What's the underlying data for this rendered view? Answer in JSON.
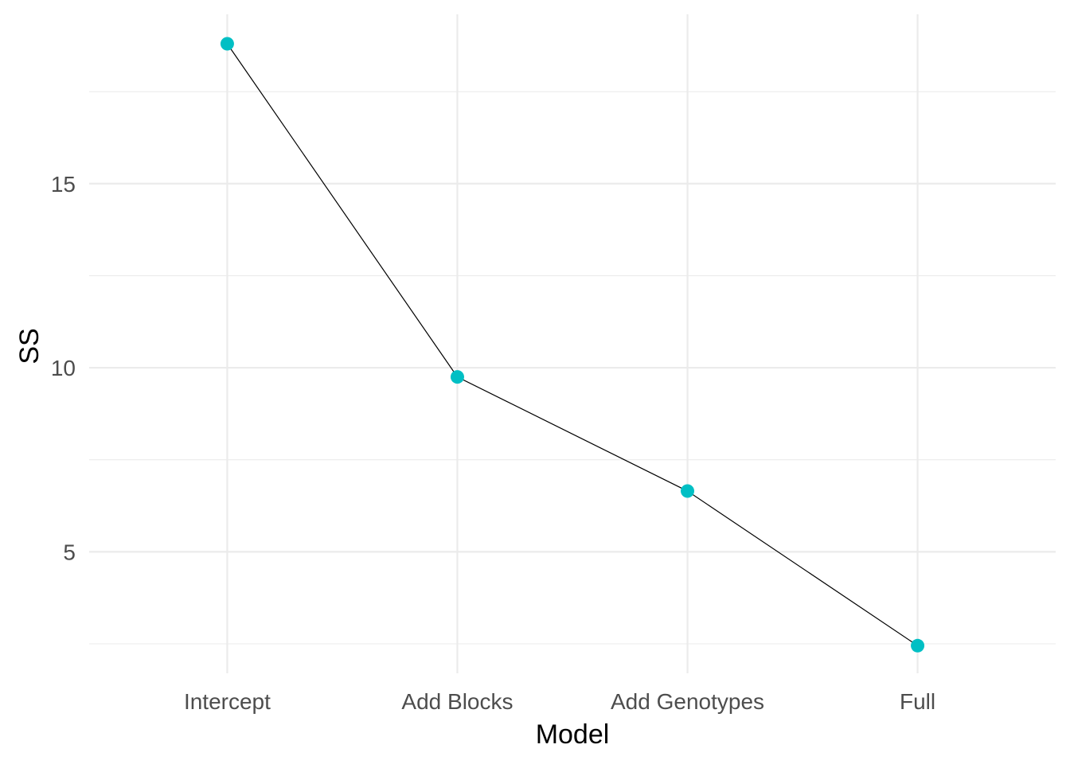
{
  "chart_data": {
    "type": "line",
    "categories": [
      "Intercept",
      "Add Blocks",
      "Add Genotypes",
      "Full"
    ],
    "series": [
      {
        "values": [
          18.8,
          9.75,
          6.65,
          2.45
        ]
      }
    ],
    "xlabel": "Model",
    "ylabel": "SS",
    "yticks": [
      5,
      10,
      15
    ],
    "ylim": [
      1.7,
      19.6
    ],
    "grid": true,
    "legend": "none",
    "colors": {
      "point": "#00bfc4",
      "line": "#000000",
      "grid": "#ebebeb",
      "tick_text": "#4d4d4d"
    }
  }
}
